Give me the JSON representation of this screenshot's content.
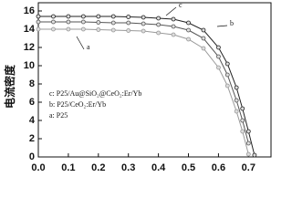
{
  "chart_data": {
    "type": "line",
    "y_label": "电流密度",
    "x": [
      0,
      0.05,
      0.1,
      0.15,
      0.2,
      0.25,
      0.3,
      0.35,
      0.4,
      0.45,
      0.5,
      0.55,
      0.6,
      0.63,
      0.66,
      0.68,
      0.7,
      0.72
    ],
    "series": [
      {
        "name": "c:  P25/Au@SiO₂@CeO₂:Er/Yb",
        "color": "#222222",
        "label": "c",
        "values": [
          15.4,
          15.4,
          15.4,
          15.4,
          15.4,
          15.4,
          15.35,
          15.3,
          15.2,
          15.1,
          14.7,
          13.9,
          12.0,
          10.2,
          7.6,
          5.3,
          2.8,
          0.2
        ]
      },
      {
        "name": "b:  P25/CeO₂:Er/Yb",
        "color": "#555555",
        "label": "b",
        "values": [
          14.8,
          14.8,
          14.8,
          14.8,
          14.75,
          14.7,
          14.7,
          14.6,
          14.5,
          14.3,
          13.9,
          13.0,
          11.0,
          9.0,
          6.2,
          4.0,
          1.5,
          null
        ]
      },
      {
        "name": "a:  P25",
        "color": "#999999",
        "label": "a",
        "values": [
          14.0,
          14.0,
          14.0,
          14.0,
          13.95,
          13.9,
          13.85,
          13.8,
          13.6,
          13.4,
          12.9,
          11.9,
          9.8,
          7.8,
          5.0,
          2.8,
          0.3,
          null
        ]
      }
    ],
    "xlim": [
      0,
      0.775
    ],
    "ylim": [
      0,
      16.9
    ],
    "xticks": [
      {
        "value": 0,
        "label": "0.0"
      },
      {
        "value": 0.1,
        "label": "0.1"
      },
      {
        "value": 0.2,
        "label": "0.2"
      },
      {
        "value": 0.3,
        "label": "0.3"
      },
      {
        "value": 0.4,
        "label": "0.4"
      },
      {
        "value": 0.5,
        "label": "0.5"
      },
      {
        "value": 0.6,
        "label": "0.6"
      },
      {
        "value": 0.7,
        "label": "0.7"
      }
    ],
    "yticks": [
      0,
      2,
      4,
      6,
      8,
      10,
      12,
      14,
      16
    ],
    "grid": false
  }
}
